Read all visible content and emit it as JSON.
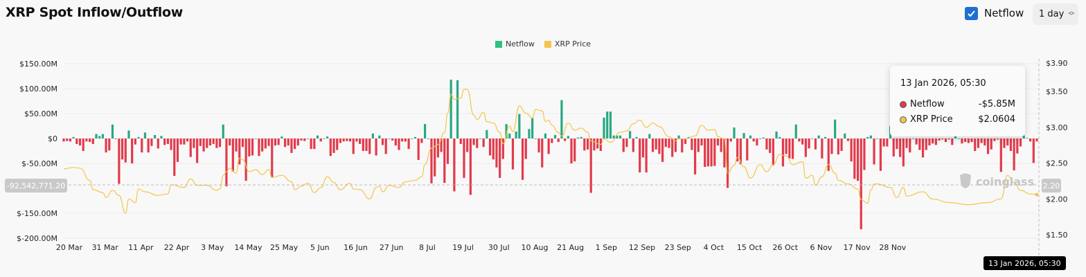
{
  "header": {
    "title": "XRP Spot Inflow/Outflow",
    "netflow_toggle_label": "Netflow",
    "netflow_toggle_checked": true,
    "interval_select": "1 day"
  },
  "colors": {
    "inflow": "#27a882",
    "outflow": "#e23a4b",
    "price": "#f2c54b",
    "accent": "#1f6fd1"
  },
  "legend": [
    {
      "label": "Netflow",
      "color": "#2fc183"
    },
    {
      "label": "XRP Price",
      "color": "#f2c54b"
    }
  ],
  "crosshair": {
    "left_value": "-92,542,771.20",
    "right_value": "2.20",
    "date_label": "13 Jan 2026, 05:30"
  },
  "watermark": "coinglass",
  "tooltip": {
    "date": "13 Jan 2026, 05:30",
    "rows": [
      {
        "label": "Netflow",
        "value": "-$5.85M",
        "color": "#e23a4b"
      },
      {
        "label": "XRP Price",
        "value": "$2.0604",
        "color": "#f2c54b"
      }
    ]
  },
  "chart_data": {
    "type": "bar+line",
    "title": "XRP Spot Inflow/Outflow",
    "x_range": [
      "2025-03-20",
      "2026-01-13"
    ],
    "x_ticks": [
      "20 Mar",
      "31 Mar",
      "11 Apr",
      "22 Apr",
      "3 May",
      "14 May",
      "25 May",
      "5 Jun",
      "16 Jun",
      "27 Jun",
      "8 Jul",
      "19 Jul",
      "30 Jul",
      "10 Aug",
      "21 Aug",
      "1 Sep",
      "12 Sep",
      "23 Sep",
      "4 Oct",
      "15 Oct",
      "26 Oct",
      "6 Nov",
      "17 Nov",
      "28 Nov"
    ],
    "y_left": {
      "ticks": [
        "$150.00M",
        "$100.00M",
        "$50.00M",
        "$0",
        "$-50.00M",
        "$-150.00M",
        "$-200.00M"
      ],
      "tick_values": [
        150,
        100,
        50,
        0,
        -50,
        -150,
        -200
      ],
      "range": [
        -200,
        150
      ],
      "unit": "USD millions"
    },
    "y_right": {
      "ticks": [
        "$3.90",
        "$3.50",
        "$3.00",
        "$2.50",
        "$2.00",
        "$1.50"
      ],
      "tick_values": [
        3.9,
        3.5,
        3.0,
        2.5,
        2.0,
        1.5
      ],
      "range": [
        1.5,
        3.9
      ],
      "unit": "USD"
    },
    "grid": true,
    "legend_placement": "top-center",
    "series": [
      {
        "name": "Netflow",
        "type": "bar",
        "interval": "1 day",
        "values": [
          -6,
          -5,
          -6,
          3,
          -11,
          -14,
          -25,
          -6,
          -7,
          -11,
          9,
          5,
          9,
          -28,
          -24,
          28,
          -1,
          -91,
          -42,
          -48,
          16,
          -50,
          -12,
          3,
          -28,
          12,
          -28,
          -15,
          7,
          -20,
          5,
          -13,
          -11,
          -23,
          -75,
          -47,
          -12,
          -12,
          -6,
          -37,
          -19,
          -49,
          -15,
          -26,
          -19,
          -14,
          -11,
          -19,
          -17,
          28,
          -96,
          -14,
          -66,
          -26,
          -52,
          -17,
          -85,
          -36,
          -34,
          0,
          -35,
          -26,
          -20,
          -15,
          -78,
          -14,
          -13,
          4,
          -17,
          -14,
          -29,
          -21,
          -14,
          -4,
          -5,
          0,
          -21,
          -21,
          6,
          -6,
          0,
          4,
          -35,
          -29,
          -23,
          -9,
          -6,
          -5,
          -6,
          -31,
          -6,
          -11,
          -25,
          -25,
          -31,
          10,
          -34,
          6,
          -13,
          -31,
          0,
          -4,
          -14,
          -23,
          -6,
          -6,
          -21,
          0,
          3,
          -43,
          -9,
          29,
          0,
          -90,
          -76,
          -38,
          -27,
          -89,
          -51,
          118,
          -106,
          117,
          -11,
          -79,
          -27,
          -113,
          -13,
          -19,
          0,
          -17,
          17,
          -34,
          -42,
          -58,
          -79,
          -41,
          29,
          10,
          -62,
          14,
          49,
          -83,
          -41,
          19,
          41,
          0,
          -28,
          -58,
          10,
          -31,
          -9,
          7,
          -7,
          77,
          -5,
          5,
          -50,
          -46,
          2,
          3,
          -24,
          -22,
          -109,
          -24,
          -20,
          -25,
          42,
          54,
          54,
          6,
          6,
          6,
          -27,
          -17,
          15,
          -27,
          3,
          -68,
          -38,
          -68,
          9,
          -27,
          -22,
          -31,
          -47,
          -17,
          -19,
          -37,
          -27,
          6,
          -28,
          -11,
          3,
          -23,
          -72,
          -27,
          -14,
          -57,
          -56,
          -56,
          -55,
          -14,
          -27,
          -58,
          -99,
          -6,
          22,
          -46,
          -52,
          11,
          -44,
          6,
          -6,
          -14,
          -1,
          2,
          -22,
          -29,
          -54,
          14,
          3,
          -56,
          -31,
          -40,
          -41,
          28,
          -6,
          -12,
          -37,
          -20,
          0,
          -22,
          6,
          -40,
          3,
          -65,
          -31,
          38,
          -32,
          -25,
          10,
          -5,
          -46,
          -81,
          -85,
          -182,
          -63,
          3,
          6,
          -52,
          0,
          -65,
          -16,
          -16,
          25,
          -36,
          -21,
          -37,
          -56,
          -19,
          -28,
          0,
          -12,
          -23,
          -38,
          -23,
          -14,
          -10,
          -13,
          -4,
          -2,
          -7,
          -2,
          -13,
          23,
          0,
          -10,
          -7,
          -9,
          -7,
          -25,
          -19,
          -9,
          -14,
          -31,
          -22,
          -5,
          -2,
          -67,
          -19,
          -14,
          -25,
          -64,
          -30,
          -16,
          6,
          1,
          -6,
          -49,
          -5.85
        ]
      },
      {
        "name": "XRP Price",
        "type": "line",
        "points": [
          [
            "2025-03-20",
            2.42
          ],
          [
            "2025-03-23",
            2.44
          ],
          [
            "2025-03-25",
            2.43
          ],
          [
            "2025-03-28",
            2.26
          ],
          [
            "2025-03-29",
            2.13
          ],
          [
            "2025-04-01",
            2.09
          ],
          [
            "2025-04-02",
            2.02
          ],
          [
            "2025-04-04",
            2.12
          ],
          [
            "2025-04-06",
            2.05
          ],
          [
            "2025-04-08",
            1.8
          ],
          [
            "2025-04-09",
            2.0
          ],
          [
            "2025-04-11",
            1.95
          ],
          [
            "2025-04-12",
            2.14
          ],
          [
            "2025-04-14",
            2.1
          ],
          [
            "2025-04-18",
            2.05
          ],
          [
            "2025-04-21",
            2.07
          ],
          [
            "2025-04-22",
            2.2
          ],
          [
            "2025-04-26",
            2.16
          ],
          [
            "2025-04-28",
            2.28
          ],
          [
            "2025-04-30",
            2.19
          ],
          [
            "2025-05-03",
            2.19
          ],
          [
            "2025-05-06",
            2.12
          ],
          [
            "2025-05-07",
            2.14
          ],
          [
            "2025-05-08",
            2.33
          ],
          [
            "2025-05-09",
            2.38
          ],
          [
            "2025-05-10",
            2.43
          ],
          [
            "2025-05-12",
            2.36
          ],
          [
            "2025-05-13",
            2.57
          ],
          [
            "2025-05-14",
            2.55
          ],
          [
            "2025-05-16",
            2.38
          ],
          [
            "2025-05-18",
            2.41
          ],
          [
            "2025-05-20",
            2.34
          ],
          [
            "2025-05-22",
            2.41
          ],
          [
            "2025-05-23",
            2.3
          ],
          [
            "2025-05-26",
            2.33
          ],
          [
            "2025-05-29",
            2.24
          ],
          [
            "2025-05-30",
            2.13
          ],
          [
            "2025-06-01",
            2.18
          ],
          [
            "2025-06-03",
            2.22
          ],
          [
            "2025-06-05",
            2.09
          ],
          [
            "2025-06-07",
            2.16
          ],
          [
            "2025-06-09",
            2.31
          ],
          [
            "2025-06-11",
            2.23
          ],
          [
            "2025-06-13",
            2.13
          ],
          [
            "2025-06-16",
            2.22
          ],
          [
            "2025-06-17",
            2.14
          ],
          [
            "2025-06-19",
            2.13
          ],
          [
            "2025-06-22",
            2.0
          ],
          [
            "2025-06-24",
            2.16
          ],
          [
            "2025-06-25",
            2.18
          ],
          [
            "2025-06-26",
            2.1
          ],
          [
            "2025-06-28",
            2.19
          ],
          [
            "2025-07-01",
            2.16
          ],
          [
            "2025-07-03",
            2.24
          ],
          [
            "2025-07-06",
            2.26
          ],
          [
            "2025-07-08",
            2.31
          ],
          [
            "2025-07-09",
            2.48
          ],
          [
            "2025-07-11",
            2.71
          ],
          [
            "2025-07-13",
            2.76
          ],
          [
            "2025-07-15",
            2.93
          ],
          [
            "2025-07-16",
            3.2
          ],
          [
            "2025-07-17",
            3.46
          ],
          [
            "2025-07-18",
            3.39
          ],
          [
            "2025-07-20",
            3.41
          ],
          [
            "2025-07-21",
            3.53
          ],
          [
            "2025-07-22",
            3.53
          ],
          [
            "2025-07-24",
            3.17
          ],
          [
            "2025-07-25",
            3.11
          ],
          [
            "2025-07-27",
            3.21
          ],
          [
            "2025-07-28",
            3.08
          ],
          [
            "2025-07-30",
            3.06
          ],
          [
            "2025-08-01",
            2.93
          ],
          [
            "2025-08-02",
            2.77
          ],
          [
            "2025-08-04",
            3.02
          ],
          [
            "2025-08-05",
            2.94
          ],
          [
            "2025-08-07",
            3.3
          ],
          [
            "2025-08-09",
            3.2
          ],
          [
            "2025-08-11",
            3.13
          ],
          [
            "2025-08-12",
            3.25
          ],
          [
            "2025-08-14",
            3.23
          ],
          [
            "2025-08-15",
            3.08
          ],
          [
            "2025-08-16",
            3.1
          ],
          [
            "2025-08-17",
            3.03
          ],
          [
            "2025-08-19",
            2.93
          ],
          [
            "2025-08-20",
            2.88
          ],
          [
            "2025-08-22",
            3.06
          ],
          [
            "2025-08-24",
            2.96
          ],
          [
            "2025-08-26",
            2.99
          ],
          [
            "2025-08-28",
            2.93
          ],
          [
            "2025-08-29",
            2.81
          ],
          [
            "2025-09-01",
            2.76
          ],
          [
            "2025-09-02",
            2.84
          ],
          [
            "2025-09-04",
            2.79
          ],
          [
            "2025-09-07",
            2.93
          ],
          [
            "2025-09-09",
            2.95
          ],
          [
            "2025-09-11",
            3.05
          ],
          [
            "2025-09-13",
            3.1
          ],
          [
            "2025-09-15",
            3.0
          ],
          [
            "2025-09-17",
            3.06
          ],
          [
            "2025-09-19",
            3.01
          ],
          [
            "2025-09-22",
            2.87
          ],
          [
            "2025-09-24",
            2.81
          ],
          [
            "2025-09-25",
            2.84
          ],
          [
            "2025-09-27",
            2.84
          ],
          [
            "2025-09-30",
            2.88
          ],
          [
            "2025-10-02",
            3.03
          ],
          [
            "2025-10-04",
            2.96
          ],
          [
            "2025-10-06",
            2.97
          ],
          [
            "2025-10-07",
            2.87
          ],
          [
            "2025-10-09",
            2.84
          ],
          [
            "2025-10-10",
            2.36
          ],
          [
            "2025-10-12",
            2.47
          ],
          [
            "2025-10-13",
            2.58
          ],
          [
            "2025-10-15",
            2.45
          ],
          [
            "2025-10-17",
            2.29
          ],
          [
            "2025-10-20",
            2.48
          ],
          [
            "2025-10-22",
            2.38
          ],
          [
            "2025-10-24",
            2.48
          ],
          [
            "2025-10-26",
            2.62
          ],
          [
            "2025-10-28",
            2.6
          ],
          [
            "2025-10-30",
            2.48
          ],
          [
            "2025-11-02",
            2.52
          ],
          [
            "2025-11-03",
            2.29
          ],
          [
            "2025-11-05",
            2.33
          ],
          [
            "2025-11-06",
            2.19
          ],
          [
            "2025-11-08",
            2.31
          ],
          [
            "2025-11-10",
            2.48
          ],
          [
            "2025-11-12",
            2.36
          ],
          [
            "2025-11-13",
            2.26
          ],
          [
            "2025-11-16",
            2.21
          ],
          [
            "2025-11-19",
            2.14
          ],
          [
            "2025-11-20",
            1.99
          ],
          [
            "2025-11-22",
            1.94
          ],
          [
            "2025-11-23",
            2.12
          ],
          [
            "2025-11-24",
            2.21
          ],
          [
            "2025-11-25",
            2.21
          ],
          [
            "2025-11-29",
            2.16
          ],
          [
            "2025-12-01",
            2.02
          ],
          [
            "2025-12-03",
            2.16
          ],
          [
            "2025-12-04",
            2.04
          ],
          [
            "2025-12-09",
            2.1
          ],
          [
            "2025-12-12",
            2.0
          ],
          [
            "2025-12-17",
            1.95
          ],
          [
            "2025-12-23",
            1.92
          ],
          [
            "2025-12-29",
            1.95
          ],
          [
            "2026-01-02",
            2.0
          ],
          [
            "2026-01-04",
            2.33
          ],
          [
            "2026-01-06",
            2.23
          ],
          [
            "2026-01-08",
            2.12
          ],
          [
            "2026-01-11",
            2.07
          ],
          [
            "2026-01-13",
            2.0604
          ]
        ]
      }
    ]
  }
}
